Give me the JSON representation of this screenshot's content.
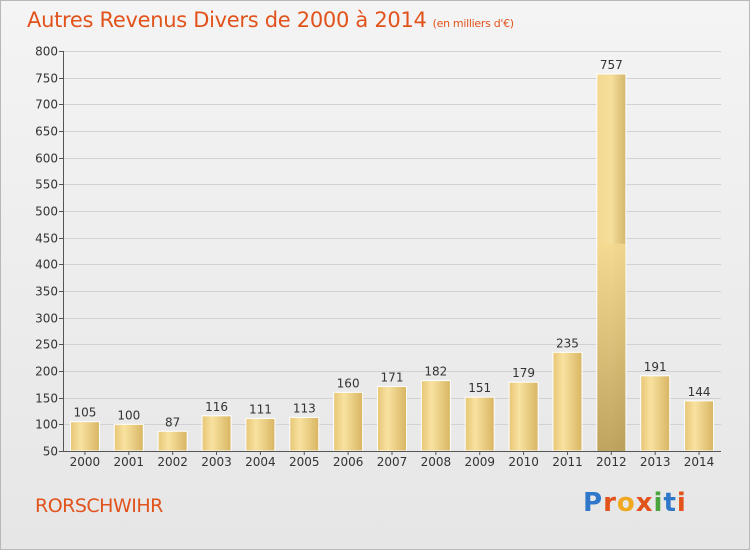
{
  "header": {
    "title": "Autres Revenus Divers de 2000 à 2014",
    "subtitle": "(en milliers d'€)"
  },
  "footer": {
    "commune": "RORSCHWIHR",
    "logo": "Proxiti"
  },
  "colors": {
    "title": "#e2531c",
    "bar_light": "#f6dc8e",
    "bar_dark": "#d9b760",
    "bar_highlight_dark": "#b59a55",
    "logo_letters": [
      "#2f77c8",
      "#e2531c",
      "#f0a820",
      "#e2531c",
      "#4aa63c",
      "#2f77c8",
      "#e2531c"
    ]
  },
  "chart_data": {
    "type": "bar",
    "title": "Autres Revenus Divers de 2000 à 2014",
    "subtitle": "(en milliers d'€)",
    "categories": [
      "2000",
      "2001",
      "2002",
      "2003",
      "2004",
      "2005",
      "2006",
      "2007",
      "2008",
      "2009",
      "2010",
      "2011",
      "2012",
      "2013",
      "2014"
    ],
    "values": [
      105,
      100,
      87,
      116,
      111,
      113,
      160,
      171,
      182,
      151,
      179,
      235,
      757,
      191,
      144
    ],
    "highlight_index": 12,
    "ylim": [
      50,
      800
    ],
    "yticks": [
      50,
      100,
      150,
      200,
      250,
      300,
      350,
      400,
      450,
      500,
      550,
      600,
      650,
      700,
      750,
      800
    ],
    "grid": true,
    "xlabel": "",
    "ylabel": ""
  }
}
